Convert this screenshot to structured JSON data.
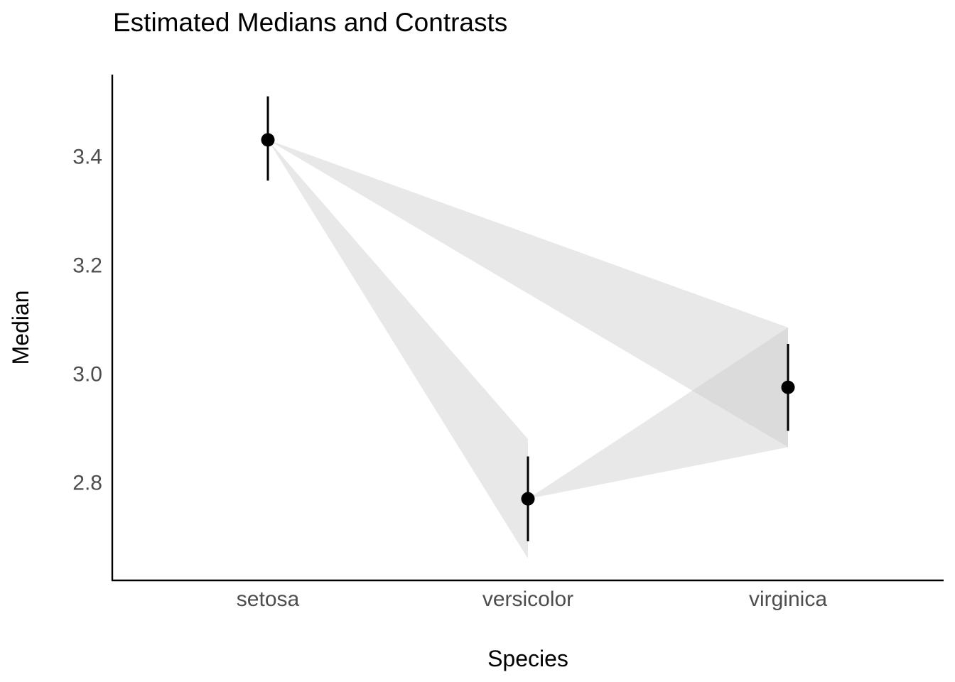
{
  "chart_data": {
    "type": "scatter",
    "title": "Estimated Medians and Contrasts",
    "xlabel": "Species",
    "ylabel": "Median",
    "categories": [
      "setosa",
      "versicolor",
      "virginica"
    ],
    "ylim": [
      2.62,
      3.55
    ],
    "yticks": [
      2.8,
      3.0,
      3.2,
      3.4
    ],
    "ytick_labels": [
      "2.8",
      "3.0",
      "3.2",
      "3.4"
    ],
    "grid": false,
    "series": [
      {
        "values": [
          3.43,
          2.77,
          2.975
        ],
        "lower": [
          3.355,
          2.692,
          2.895
        ],
        "upper": [
          3.51,
          2.848,
          3.055
        ],
        "color": "#000000"
      }
    ],
    "contrasts": [
      {
        "from": "setosa",
        "to": "versicolor",
        "target_lower": 2.66,
        "target_upper": 2.88
      },
      {
        "from": "setosa",
        "to": "virginica",
        "target_lower": 2.865,
        "target_upper": 3.085
      },
      {
        "from": "versicolor",
        "to": "virginica",
        "target_lower": 2.865,
        "target_upper": 3.085
      }
    ],
    "band_color": "#cccccc",
    "band_opacity": 0.45
  }
}
